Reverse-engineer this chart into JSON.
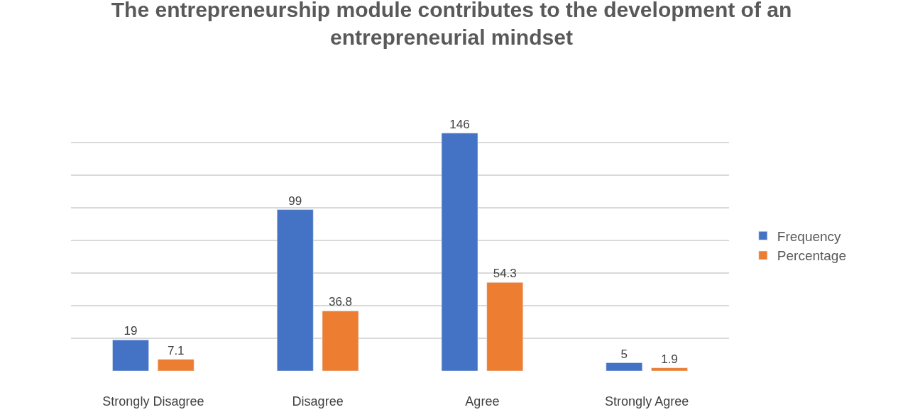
{
  "chart_data": {
    "type": "bar",
    "title": "The entrepreneurship module contributes to the development of an entrepreneurial mindset",
    "categories": [
      "Strongly Disagree",
      "Disagree",
      "Agree",
      "Strongly Agree"
    ],
    "series": [
      {
        "name": "Frequency",
        "color": "#4472c4",
        "values": [
          19,
          99,
          146,
          5
        ]
      },
      {
        "name": "Percentage",
        "color": "#ed7d31",
        "values": [
          7.1,
          36.8,
          54.3,
          1.9
        ]
      }
    ],
    "tick_labels": "x",
    "grid": "y",
    "legend": "right",
    "data_labels": true
  }
}
